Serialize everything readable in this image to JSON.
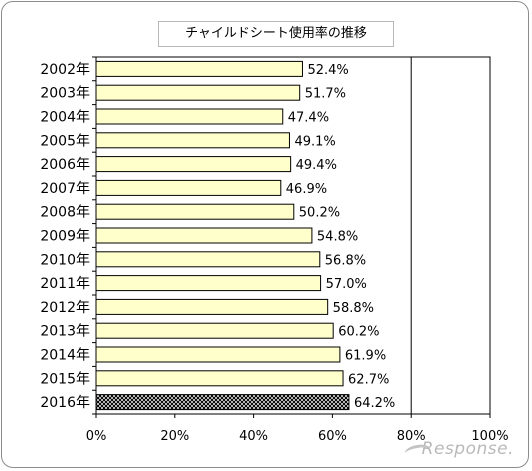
{
  "chart_data": {
    "type": "bar",
    "orientation": "horizontal",
    "title": "チャイルドシート使用率の推移",
    "categories": [
      "2002年",
      "2003年",
      "2004年",
      "2005年",
      "2006年",
      "2007年",
      "2008年",
      "2009年",
      "2010年",
      "2011年",
      "2012年",
      "2013年",
      "2014年",
      "2015年",
      "2016年"
    ],
    "values": [
      52.4,
      51.7,
      47.4,
      49.1,
      49.4,
      46.9,
      50.2,
      54.8,
      56.8,
      57.0,
      58.8,
      60.2,
      61.9,
      62.7,
      64.2
    ],
    "value_labels": [
      "52.4%",
      "51.7%",
      "47.4%",
      "49.1%",
      "49.4%",
      "46.9%",
      "50.2%",
      "54.8%",
      "56.8%",
      "57.0%",
      "58.8%",
      "60.2%",
      "61.9%",
      "62.7%",
      "64.2%"
    ],
    "xlim": [
      0,
      100
    ],
    "xticks": [
      0,
      20,
      40,
      60,
      80,
      100
    ],
    "xtick_labels": [
      "0%",
      "20%",
      "40%",
      "60%",
      "80%",
      "100%"
    ],
    "grid": "vertical gridline at 80%",
    "highlight_category": "2016年",
    "colors": {
      "bar_fill": "#ffffcc",
      "bar_border": "#000000",
      "highlight_pattern": "crosshatch black"
    }
  },
  "watermark": "Response."
}
